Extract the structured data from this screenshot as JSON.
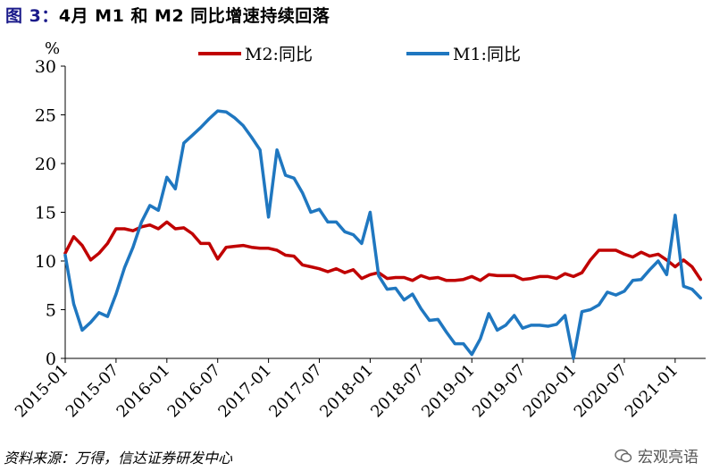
{
  "figure": {
    "label": "图 3：",
    "title": "4月 M1 和 M2 同比增速持续回落"
  },
  "source": "资料来源：万得，信达证券研发中心",
  "watermark": "宏观亮语",
  "chart_data": {
    "type": "line",
    "unit_label": "%",
    "ylim": [
      0,
      30
    ],
    "yticks": [
      0,
      5,
      10,
      15,
      20,
      25,
      30
    ],
    "xlim": [
      "2015-01",
      "2021-04"
    ],
    "xticks": [
      "2015-01",
      "2015-07",
      "2016-01",
      "2016-07",
      "2017-01",
      "2017-07",
      "2018-01",
      "2018-07",
      "2019-01",
      "2019-07",
      "2020-01",
      "2020-07",
      "2021-01"
    ],
    "legend_position": "top",
    "grid": false,
    "series": [
      {
        "name": "M2:同比",
        "color": "#c00000",
        "x": [
          "2015-01",
          "2015-02",
          "2015-03",
          "2015-04",
          "2015-05",
          "2015-06",
          "2015-07",
          "2015-08",
          "2015-09",
          "2015-10",
          "2015-11",
          "2015-12",
          "2016-01",
          "2016-02",
          "2016-03",
          "2016-04",
          "2016-05",
          "2016-06",
          "2016-07",
          "2016-08",
          "2016-09",
          "2016-10",
          "2016-11",
          "2016-12",
          "2017-01",
          "2017-02",
          "2017-03",
          "2017-04",
          "2017-05",
          "2017-06",
          "2017-07",
          "2017-08",
          "2017-09",
          "2017-10",
          "2017-11",
          "2017-12",
          "2018-01",
          "2018-02",
          "2018-03",
          "2018-04",
          "2018-05",
          "2018-06",
          "2018-07",
          "2018-08",
          "2018-09",
          "2018-10",
          "2018-11",
          "2018-12",
          "2019-01",
          "2019-02",
          "2019-03",
          "2019-04",
          "2019-05",
          "2019-06",
          "2019-07",
          "2019-08",
          "2019-09",
          "2019-10",
          "2019-11",
          "2019-12",
          "2020-01",
          "2020-02",
          "2020-03",
          "2020-04",
          "2020-05",
          "2020-06",
          "2020-07",
          "2020-08",
          "2020-09",
          "2020-10",
          "2020-11",
          "2020-12",
          "2021-01",
          "2021-02",
          "2021-03",
          "2021-04"
        ],
        "values": [
          10.8,
          12.5,
          11.6,
          10.1,
          10.8,
          11.8,
          13.3,
          13.3,
          13.1,
          13.5,
          13.7,
          13.3,
          14.0,
          13.3,
          13.4,
          12.8,
          11.8,
          11.8,
          10.2,
          11.4,
          11.5,
          11.6,
          11.4,
          11.3,
          11.3,
          11.1,
          10.6,
          10.5,
          9.6,
          9.4,
          9.2,
          8.9,
          9.2,
          8.8,
          9.1,
          8.2,
          8.6,
          8.8,
          8.2,
          8.3,
          8.3,
          8.0,
          8.5,
          8.2,
          8.3,
          8.0,
          8.0,
          8.1,
          8.4,
          8.0,
          8.6,
          8.5,
          8.5,
          8.5,
          8.1,
          8.2,
          8.4,
          8.4,
          8.2,
          8.7,
          8.4,
          8.8,
          10.1,
          11.1,
          11.1,
          11.1,
          10.7,
          10.4,
          10.9,
          10.5,
          10.7,
          10.1,
          9.4,
          10.1,
          9.4,
          8.1
        ]
      },
      {
        "name": "M1:同比",
        "color": "#1f77c0",
        "x": [
          "2015-01",
          "2015-02",
          "2015-03",
          "2015-04",
          "2015-05",
          "2015-06",
          "2015-07",
          "2015-08",
          "2015-09",
          "2015-10",
          "2015-11",
          "2015-12",
          "2016-01",
          "2016-02",
          "2016-03",
          "2016-04",
          "2016-05",
          "2016-06",
          "2016-07",
          "2016-08",
          "2016-09",
          "2016-10",
          "2016-11",
          "2016-12",
          "2017-01",
          "2017-02",
          "2017-03",
          "2017-04",
          "2017-05",
          "2017-06",
          "2017-07",
          "2017-08",
          "2017-09",
          "2017-10",
          "2017-11",
          "2017-12",
          "2018-01",
          "2018-02",
          "2018-03",
          "2018-04",
          "2018-05",
          "2018-06",
          "2018-07",
          "2018-08",
          "2018-09",
          "2018-10",
          "2018-11",
          "2018-12",
          "2019-01",
          "2019-02",
          "2019-03",
          "2019-04",
          "2019-05",
          "2019-06",
          "2019-07",
          "2019-08",
          "2019-09",
          "2019-10",
          "2019-11",
          "2019-12",
          "2020-01",
          "2020-02",
          "2020-03",
          "2020-04",
          "2020-05",
          "2020-06",
          "2020-07",
          "2020-08",
          "2020-09",
          "2020-10",
          "2020-11",
          "2020-12",
          "2021-01",
          "2021-02",
          "2021-03",
          "2021-04"
        ],
        "values": [
          10.6,
          5.6,
          2.9,
          3.7,
          4.7,
          4.3,
          6.6,
          9.3,
          11.4,
          14.0,
          15.7,
          15.2,
          18.6,
          17.4,
          22.1,
          22.9,
          23.7,
          24.6,
          25.4,
          25.3,
          24.7,
          23.9,
          22.7,
          21.4,
          14.5,
          21.4,
          18.8,
          18.5,
          17.0,
          15.0,
          15.3,
          14.0,
          14.0,
          13.0,
          12.7,
          11.8,
          15.0,
          8.5,
          7.1,
          7.2,
          6.0,
          6.6,
          5.1,
          3.9,
          4.0,
          2.7,
          1.5,
          1.5,
          0.4,
          2.0,
          4.6,
          2.9,
          3.4,
          4.4,
          3.1,
          3.4,
          3.4,
          3.3,
          3.5,
          4.4,
          0.0,
          4.8,
          5.0,
          5.5,
          6.8,
          6.5,
          6.9,
          8.0,
          8.1,
          9.1,
          10.0,
          8.6,
          14.7,
          7.4,
          7.1,
          6.2
        ]
      }
    ]
  }
}
